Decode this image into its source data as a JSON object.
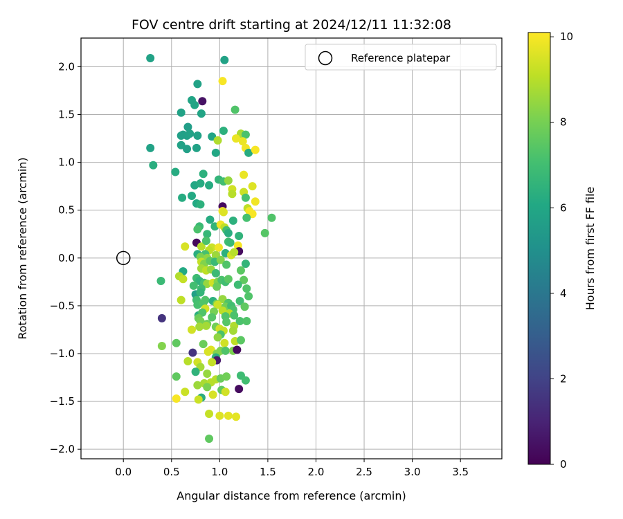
{
  "chart_data": {
    "type": "scatter",
    "title": "FOV centre drift starting at 2024/12/11 11:32:08",
    "xlabel": "Angular distance from reference (arcmin)",
    "ylabel": "Rotation from reference (arcmin)",
    "xlim": [
      -0.44,
      3.93
    ],
    "ylim": [
      -2.1,
      2.3
    ],
    "xticks": [
      "0.0",
      "0.5",
      "1.0",
      "1.5",
      "2.0",
      "2.5",
      "3.0",
      "3.5"
    ],
    "xtick_values": [
      0,
      0.5,
      1.0,
      1.5,
      2.0,
      2.5,
      3.0,
      3.5
    ],
    "yticks": [
      "−2.0",
      "−1.5",
      "−1.0",
      "−0.5",
      "0.0",
      "0.5",
      "1.0",
      "1.5",
      "2.0"
    ],
    "ytick_values": [
      -2.0,
      -1.5,
      -1.0,
      -0.5,
      0,
      0.5,
      1.0,
      1.5,
      2.0
    ],
    "grid": true,
    "colormap": "viridis",
    "colorbar": {
      "label": "Hours from first FF file",
      "range": [
        0,
        10.1
      ],
      "ticks": [
        "0",
        "2",
        "4",
        "6",
        "8",
        "10"
      ],
      "tick_values": [
        0,
        2,
        4,
        6,
        8,
        10
      ]
    },
    "legend": {
      "position": "top-right",
      "entries": [
        "Reference platepar"
      ]
    },
    "reference_point": {
      "x": 0,
      "y": 0
    },
    "points": [
      [
        0.28,
        2.09,
        5.8
      ],
      [
        1.05,
        2.07,
        5.8
      ],
      [
        0.77,
        1.82,
        5.8
      ],
      [
        1.03,
        1.85,
        10
      ],
      [
        0.82,
        1.64,
        0.5
      ],
      [
        0.71,
        1.65,
        5.9
      ],
      [
        0.74,
        1.6,
        5.9
      ],
      [
        0.81,
        1.51,
        5.9
      ],
      [
        0.6,
        1.52,
        5.8
      ],
      [
        1.16,
        1.55,
        7.3
      ],
      [
        0.67,
        1.37,
        5.6
      ],
      [
        0.6,
        1.28,
        5.7
      ],
      [
        0.62,
        1.29,
        5.7
      ],
      [
        0.66,
        1.28,
        5.7
      ],
      [
        0.69,
        1.3,
        5.8
      ],
      [
        0.77,
        1.28,
        5.8
      ],
      [
        0.92,
        1.27,
        5.9
      ],
      [
        1.04,
        1.33,
        6.4
      ],
      [
        1.22,
        1.3,
        8.8
      ],
      [
        1.27,
        1.29,
        7.2
      ],
      [
        0.98,
        1.23,
        8.9
      ],
      [
        1.17,
        1.25,
        9.8
      ],
      [
        1.24,
        1.22,
        9.8
      ],
      [
        1.27,
        1.15,
        9.9
      ],
      [
        1.3,
        1.1,
        6.2
      ],
      [
        1.37,
        1.13,
        10
      ],
      [
        0.28,
        1.15,
        5.8
      ],
      [
        0.6,
        1.18,
        5.8
      ],
      [
        0.66,
        1.14,
        5.7
      ],
      [
        0.76,
        1.15,
        5.8
      ],
      [
        0.96,
        1.1,
        6.0
      ],
      [
        0.31,
        0.97,
        6.3
      ],
      [
        0.54,
        0.9,
        6.2
      ],
      [
        1.25,
        0.87,
        9.8
      ],
      [
        0.83,
        0.88,
        6.4
      ],
      [
        0.99,
        0.82,
        6.6
      ],
      [
        1.04,
        0.8,
        7.0
      ],
      [
        1.09,
        0.81,
        8.5
      ],
      [
        0.74,
        0.76,
        6.0
      ],
      [
        0.8,
        0.78,
        6.2
      ],
      [
        0.89,
        0.76,
        6.2
      ],
      [
        1.13,
        0.72,
        9.4
      ],
      [
        1.25,
        0.69,
        9.3
      ],
      [
        1.34,
        0.75,
        9.6
      ],
      [
        1.13,
        0.67,
        9.0
      ],
      [
        0.61,
        0.63,
        6.2
      ],
      [
        0.71,
        0.65,
        6.1
      ],
      [
        0.76,
        0.57,
        6.1
      ],
      [
        0.8,
        0.56,
        6.4
      ],
      [
        1.03,
        0.54,
        0.3
      ],
      [
        1.27,
        0.63,
        7.1
      ],
      [
        1.37,
        0.59,
        9.9
      ],
      [
        1.29,
        0.52,
        9.1
      ],
      [
        1.31,
        0.49,
        10
      ],
      [
        1.34,
        0.46,
        10
      ],
      [
        1.03,
        0.49,
        10
      ],
      [
        1.04,
        0.48,
        9.6
      ],
      [
        1.28,
        0.42,
        7.1
      ],
      [
        1.54,
        0.42,
        7.3
      ],
      [
        0.9,
        0.4,
        6.2
      ],
      [
        0.95,
        0.33,
        6.6
      ],
      [
        1.01,
        0.35,
        9.9
      ],
      [
        1.05,
        0.32,
        9.1
      ],
      [
        1.14,
        0.39,
        6.4
      ],
      [
        0.79,
        0.33,
        6.8
      ],
      [
        0.77,
        0.3,
        7.2
      ],
      [
        0.87,
        0.25,
        6.7
      ],
      [
        1.07,
        0.29,
        7.0
      ],
      [
        1.09,
        0.26,
        6.3
      ],
      [
        1.2,
        0.23,
        6.5
      ],
      [
        1.47,
        0.26,
        7.4
      ],
      [
        0.76,
        0.16,
        0.2
      ],
      [
        0.81,
        0.12,
        9.0
      ],
      [
        0.86,
        0.18,
        7.2
      ],
      [
        0.92,
        0.11,
        9.3
      ],
      [
        0.99,
        0.11,
        9.9
      ],
      [
        1.09,
        0.17,
        7.0
      ],
      [
        1.11,
        0.16,
        6.8
      ],
      [
        1.19,
        0.13,
        10
      ],
      [
        0.64,
        0.12,
        9.5
      ],
      [
        1.2,
        0.07,
        0.3
      ],
      [
        0.89,
        0.08,
        9.1
      ],
      [
        0.85,
        0.04,
        7.1
      ],
      [
        0.77,
        0.04,
        6.3
      ],
      [
        0.8,
        0.01,
        8.1
      ],
      [
        0.87,
        0.0,
        8.4
      ],
      [
        0.96,
        0.03,
        8.6
      ],
      [
        1.06,
        0.05,
        6.4
      ],
      [
        1.12,
        0.03,
        9.4
      ],
      [
        1.15,
        0.06,
        9.0
      ],
      [
        0.81,
        -0.04,
        9.2
      ],
      [
        0.84,
        -0.06,
        8.2
      ],
      [
        0.9,
        -0.03,
        7.6
      ],
      [
        0.95,
        -0.04,
        6.8
      ],
      [
        1.01,
        -0.02,
        8.2
      ],
      [
        1.07,
        -0.07,
        7.3
      ],
      [
        0.81,
        -0.11,
        8.7
      ],
      [
        0.86,
        -0.13,
        9.1
      ],
      [
        0.62,
        -0.14,
        6.1
      ],
      [
        0.91,
        -0.12,
        8.5
      ],
      [
        0.96,
        -0.16,
        6.8
      ],
      [
        1.27,
        -0.06,
        6.6
      ],
      [
        1.22,
        -0.13,
        7.5
      ],
      [
        0.58,
        -0.19,
        8.9
      ],
      [
        0.62,
        -0.22,
        9.2
      ],
      [
        0.76,
        -0.21,
        6.9
      ],
      [
        0.79,
        -0.24,
        6.5
      ],
      [
        0.84,
        -0.26,
        7.1
      ],
      [
        0.87,
        -0.27,
        8.5
      ],
      [
        0.93,
        -0.26,
        9.4
      ],
      [
        0.98,
        -0.25,
        8.2
      ],
      [
        1.02,
        -0.23,
        7.2
      ],
      [
        1.06,
        -0.25,
        7.0
      ],
      [
        1.09,
        -0.22,
        7.5
      ],
      [
        1.25,
        -0.23,
        7.6
      ],
      [
        0.39,
        -0.24,
        6.8
      ],
      [
        0.73,
        -0.29,
        7.0
      ],
      [
        0.81,
        -0.32,
        6.9
      ],
      [
        0.97,
        -0.3,
        7.8
      ],
      [
        1.19,
        -0.28,
        6.9
      ],
      [
        0.75,
        -0.38,
        5.7
      ],
      [
        0.8,
        -0.36,
        6.6
      ],
      [
        1.28,
        -0.32,
        7.3
      ],
      [
        1.3,
        -0.4,
        7.3
      ],
      [
        0.6,
        -0.44,
        9.1
      ],
      [
        0.76,
        -0.44,
        7.0
      ],
      [
        0.85,
        -0.44,
        7.3
      ],
      [
        0.93,
        -0.45,
        6.4
      ],
      [
        0.97,
        -0.48,
        8.1
      ],
      [
        1.03,
        -0.43,
        8.5
      ],
      [
        1.09,
        -0.47,
        7.3
      ],
      [
        1.21,
        -0.45,
        7.0
      ],
      [
        0.77,
        -0.49,
        7.1
      ],
      [
        0.83,
        -0.47,
        7.3
      ],
      [
        0.85,
        -0.53,
        9.4
      ],
      [
        0.98,
        -0.49,
        9.3
      ],
      [
        1.06,
        -0.51,
        7.9
      ],
      [
        1.12,
        -0.5,
        7.0
      ],
      [
        1.14,
        -0.54,
        7.2
      ],
      [
        1.26,
        -0.51,
        7.6
      ],
      [
        0.78,
        -0.6,
        6.4
      ],
      [
        0.82,
        -0.57,
        7.3
      ],
      [
        0.94,
        -0.56,
        8.0
      ],
      [
        1.03,
        -0.55,
        9.1
      ],
      [
        1.1,
        -0.58,
        9.0
      ],
      [
        1.06,
        -0.61,
        7.3
      ],
      [
        1.15,
        -0.6,
        7.2
      ],
      [
        0.4,
        -0.63,
        1.5
      ],
      [
        0.78,
        -0.63,
        7.8
      ],
      [
        0.8,
        -0.66,
        8.0
      ],
      [
        0.87,
        -0.69,
        7.9
      ],
      [
        0.92,
        -0.62,
        7.4
      ],
      [
        1.07,
        -0.67,
        7.4
      ],
      [
        1.15,
        -0.71,
        8.9
      ],
      [
        1.21,
        -0.66,
        7.2
      ],
      [
        1.28,
        -0.66,
        7.3
      ],
      [
        0.79,
        -0.72,
        8.7
      ],
      [
        0.86,
        -0.71,
        8.7
      ],
      [
        0.96,
        -0.72,
        7.9
      ],
      [
        1.0,
        -0.74,
        9.4
      ],
      [
        1.04,
        -0.76,
        9.2
      ],
      [
        0.71,
        -0.75,
        9.4
      ],
      [
        1.01,
        -0.8,
        7.2
      ],
      [
        0.98,
        -0.83,
        8.4
      ],
      [
        1.14,
        -0.76,
        8.7
      ],
      [
        0.4,
        -0.92,
        8.2
      ],
      [
        0.55,
        -0.89,
        7.6
      ],
      [
        0.83,
        -0.9,
        7.8
      ],
      [
        0.91,
        -0.96,
        9.6
      ],
      [
        1.05,
        -0.89,
        9.4
      ],
      [
        1.16,
        -0.87,
        9.1
      ],
      [
        1.22,
        -0.86,
        7.5
      ],
      [
        0.88,
        -0.98,
        9.5
      ],
      [
        0.97,
        -1.0,
        8.2
      ],
      [
        1.01,
        -0.97,
        8.2
      ],
      [
        1.06,
        -0.97,
        7.3
      ],
      [
        1.14,
        -0.97,
        8.1
      ],
      [
        1.18,
        -0.96,
        0.3
      ],
      [
        0.72,
        -0.99,
        1.5
      ],
      [
        0.96,
        -1.04,
        6.4
      ],
      [
        0.97,
        -1.07,
        0.7
      ],
      [
        0.67,
        -1.08,
        9.0
      ],
      [
        0.77,
        -1.09,
        9.4
      ],
      [
        0.8,
        -1.14,
        8.7
      ],
      [
        0.87,
        -1.21,
        8.5
      ],
      [
        0.92,
        -1.09,
        9.2
      ],
      [
        0.55,
        -1.24,
        7.6
      ],
      [
        0.75,
        -1.19,
        6.5
      ],
      [
        0.96,
        -1.27,
        9.0
      ],
      [
        1.01,
        -1.26,
        7.8
      ],
      [
        1.07,
        -1.24,
        7.9
      ],
      [
        1.22,
        -1.23,
        6.9
      ],
      [
        1.27,
        -1.28,
        7.0
      ],
      [
        0.77,
        -1.33,
        8.6
      ],
      [
        0.84,
        -1.31,
        8.8
      ],
      [
        0.91,
        -1.3,
        9.0
      ],
      [
        0.87,
        -1.35,
        8.1
      ],
      [
        1.02,
        -1.38,
        7.6
      ],
      [
        1.06,
        -1.4,
        9.4
      ],
      [
        1.2,
        -1.37,
        0.3
      ],
      [
        0.64,
        -1.4,
        9.3
      ],
      [
        0.81,
        -1.46,
        6.3
      ],
      [
        0.93,
        -1.43,
        9.5
      ],
      [
        0.55,
        -1.47,
        10
      ],
      [
        0.78,
        -1.48,
        9.3
      ],
      [
        0.89,
        -1.63,
        9.2
      ],
      [
        1.0,
        -1.65,
        9.6
      ],
      [
        1.09,
        -1.65,
        9.7
      ],
      [
        1.17,
        -1.66,
        9.7
      ],
      [
        0.89,
        -1.89,
        7.6
      ]
    ]
  }
}
